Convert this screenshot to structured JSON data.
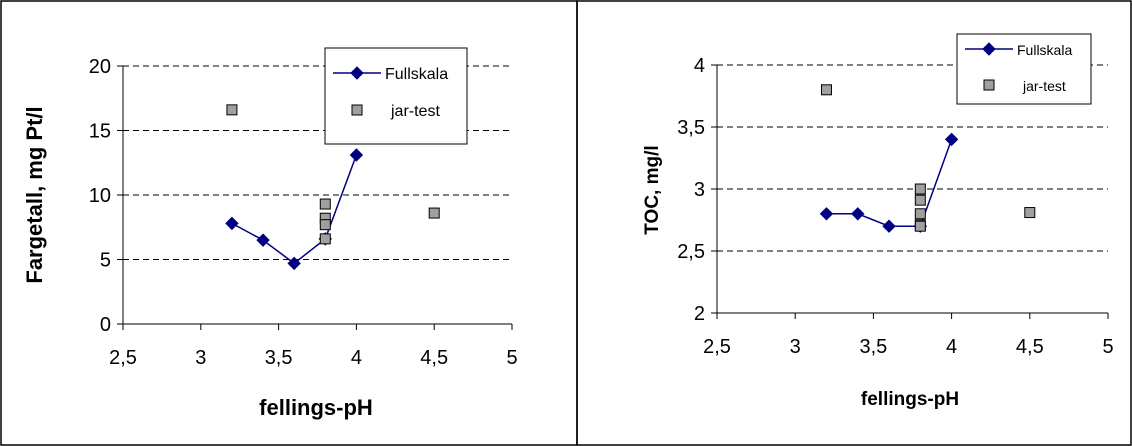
{
  "chart_data": [
    {
      "type": "scatter",
      "ylabel": "Fargetall, mg Pt/l",
      "xlabel": "fellings-pH",
      "xlim": [
        2.5,
        5
      ],
      "ylim": [
        0,
        20
      ],
      "x_ticks": [
        2.5,
        3,
        3.5,
        4,
        4.5,
        5
      ],
      "x_tick_labels": [
        "2,5",
        "3",
        "3,5",
        "4",
        "4,5",
        "5"
      ],
      "y_ticks": [
        0,
        5,
        10,
        15,
        20
      ],
      "y_tick_labels": [
        "0",
        "5",
        "10",
        "15",
        "20"
      ],
      "grid": "horizontal dashed",
      "legend_position": "top-right",
      "series": [
        {
          "name": "Fullskala",
          "kind": "line",
          "marker": "diamond",
          "color": "#000080",
          "x": [
            3.2,
            3.4,
            3.6,
            3.8,
            4.0
          ],
          "y": [
            7.8,
            6.5,
            4.7,
            6.6,
            13.1
          ]
        },
        {
          "name": "jar-test",
          "kind": "scatter",
          "marker": "square",
          "color": "#a0a0a0",
          "x": [
            3.2,
            3.8,
            3.8,
            3.8,
            3.8,
            4.5
          ],
          "y": [
            16.6,
            9.3,
            8.2,
            7.7,
            6.6,
            8.6
          ]
        }
      ]
    },
    {
      "type": "scatter",
      "ylabel": "TOC, mg/l",
      "xlabel": "fellings-pH",
      "xlim": [
        2.5,
        5
      ],
      "ylim": [
        2,
        4
      ],
      "x_ticks": [
        2.5,
        3,
        3.5,
        4,
        4.5,
        5
      ],
      "x_tick_labels": [
        "2,5",
        "3",
        "3,5",
        "4",
        "4,5",
        "5"
      ],
      "y_ticks": [
        2,
        2.5,
        3,
        3.5,
        4
      ],
      "y_tick_labels": [
        "2",
        "2,5",
        "3",
        "3,5",
        "4"
      ],
      "grid": "horizontal dashed",
      "legend_position": "top-right",
      "series": [
        {
          "name": "Fullskala",
          "kind": "line",
          "marker": "diamond",
          "color": "#000080",
          "x": [
            3.2,
            3.4,
            3.6,
            3.8,
            4.0
          ],
          "y": [
            2.8,
            2.8,
            2.7,
            2.7,
            3.4
          ]
        },
        {
          "name": "jar-test",
          "kind": "scatter",
          "marker": "square",
          "color": "#a0a0a0",
          "x": [
            3.2,
            3.8,
            3.8,
            3.8,
            3.8,
            3.8,
            4.5
          ],
          "y": [
            3.8,
            3.0,
            2.91,
            2.8,
            2.71,
            2.7,
            2.81
          ]
        }
      ]
    }
  ]
}
